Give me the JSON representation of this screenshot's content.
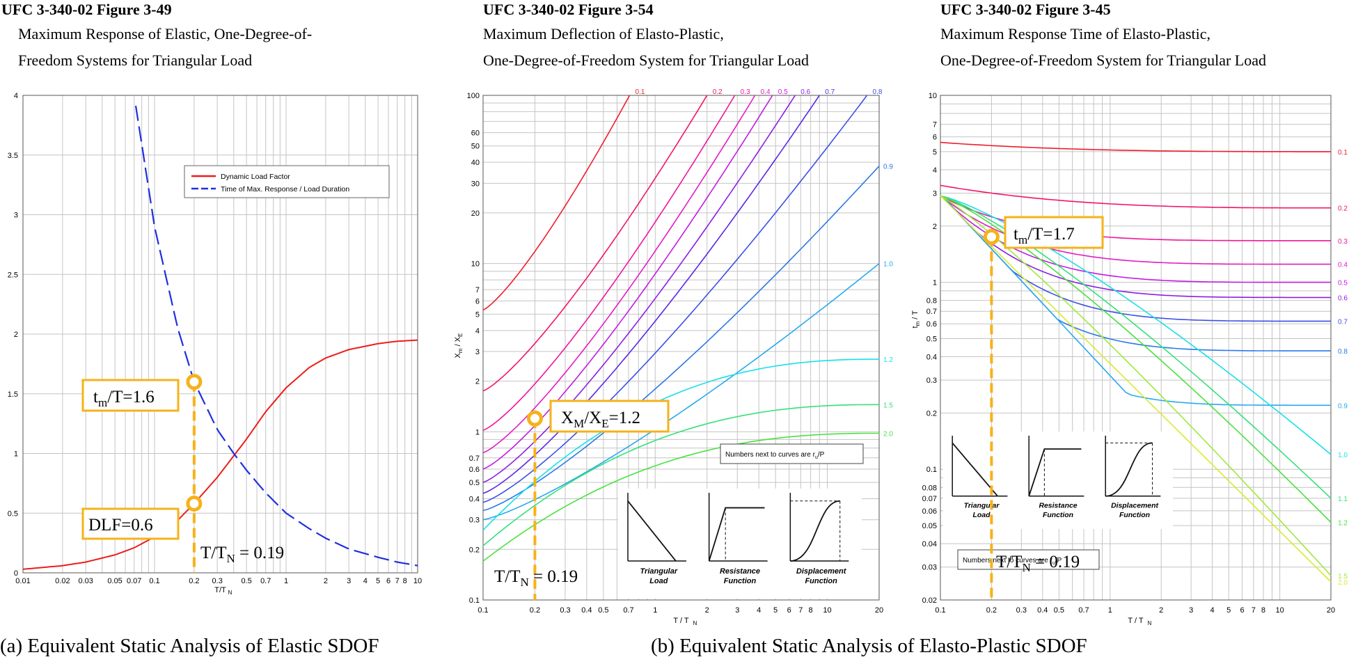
{
  "panels": [
    {
      "figure": "UFC 3-340-02 Figure 3-49",
      "line1": "Maximum Response of Elastic, One-Degree-of-",
      "line2": "Freedom Systems for Triangular Load"
    },
    {
      "figure": "UFC 3-340-02 Figure 3-54",
      "line1": "Maximum Deflection of Elasto-Plastic,",
      "line2": "One-Degree-of-Freedom System for Triangular Load"
    },
    {
      "figure": "UFC 3-340-02 Figure 3-45",
      "line1": "Maximum Response Time of Elasto-Plastic,",
      "line2": "One-Degree-of-Freedom System for Triangular Load"
    }
  ],
  "captions": {
    "a": "(a) Equivalent Static Analysis of Elastic SDOF",
    "b": "(b) Equivalent Static Analysis of Elasto-Plastic SDOF"
  },
  "colors": {
    "red": "#ee1c1c",
    "blue": "#1f2fe0",
    "orange": "#f6b21a",
    "grid": "#c4c4c4"
  },
  "chart_data": [
    {
      "type": "line",
      "xscale": "log",
      "xlim": [
        0.01,
        10
      ],
      "ylim": [
        0,
        4
      ],
      "xlabel": "T/T_N",
      "xticks": [
        "0.01",
        "0.02",
        "0.03",
        "0.05",
        "0.07",
        "0.1",
        "0.2",
        "0.3",
        "0.5",
        "0.7",
        "1",
        "2",
        "3",
        "4",
        "5",
        "6",
        "7",
        "8",
        "10"
      ],
      "yticks": [
        "0",
        "0.5",
        "1",
        "1.5",
        "2",
        "2.5",
        "3",
        "3.5",
        "4"
      ],
      "legend": [
        "Dynamic Load Factor",
        "Time of Max. Response / Load Duration"
      ],
      "series": [
        {
          "name": "Dynamic Load Factor",
          "x": [
            0.01,
            0.02,
            0.03,
            0.05,
            0.07,
            0.1,
            0.15,
            0.2,
            0.3,
            0.4,
            0.5,
            0.7,
            1,
            1.5,
            2,
            3,
            5,
            7,
            10
          ],
          "y": [
            0.03,
            0.06,
            0.09,
            0.15,
            0.21,
            0.3,
            0.44,
            0.58,
            0.8,
            0.98,
            1.12,
            1.35,
            1.55,
            1.72,
            1.8,
            1.87,
            1.92,
            1.94,
            1.95
          ]
        },
        {
          "name": "Time of Max. Response / Load Duration",
          "x": [
            0.07,
            0.1,
            0.15,
            0.2,
            0.3,
            0.4,
            0.5,
            0.7,
            1,
            1.5,
            2,
            3,
            5,
            7,
            10
          ],
          "y": [
            4.0,
            2.9,
            2.05,
            1.6,
            1.2,
            1.0,
            0.86,
            0.67,
            0.5,
            0.37,
            0.29,
            0.2,
            0.13,
            0.09,
            0.06
          ]
        }
      ],
      "annotations": {
        "tm": "1.6",
        "dlf": "0.6",
        "ratio": "0.19",
        "x": 0.2,
        "y_tm": 1.6,
        "y_dlf": 0.58
      }
    },
    {
      "type": "line",
      "xscale": "log",
      "yscale": "log",
      "xlim": [
        0.1,
        20
      ],
      "ylim": [
        0.1,
        100
      ],
      "xlabel": "T / T_N",
      "ylabel": "X_m / X_E",
      "xticks": [
        "0.1",
        "0.2",
        "0.3",
        "0.4",
        "0.5",
        "0.7",
        "1",
        "2",
        "3",
        "4",
        "5",
        "6",
        "7",
        "8",
        "10",
        "20"
      ],
      "yticks": [
        "0.1",
        "0.2",
        "0.3",
        "0.4",
        "0.5",
        "0.6",
        "0.7",
        "1",
        "2",
        "3",
        "4",
        "5",
        "6",
        "7",
        "10",
        "20",
        "30",
        "40",
        "50",
        "60",
        "100"
      ],
      "note": "Numbers next to curves are r",
      "insets": [
        "Triangular Load",
        "Resistance Function",
        "Displacement Function"
      ],
      "series": [
        {
          "name": "0.1",
          "start": 5.3
        },
        {
          "name": "0.2",
          "start": 1.75
        },
        {
          "name": "0.3",
          "start": 1.02
        },
        {
          "name": "0.4",
          "start": 0.75
        },
        {
          "name": "0.5",
          "start": 0.6
        },
        {
          "name": "0.6",
          "start": 0.5
        },
        {
          "name": "0.7",
          "start": 0.43
        },
        {
          "name": "0.8",
          "start": 0.38
        },
        {
          "name": "0.9",
          "start": 0.34
        },
        {
          "name": "1.0",
          "start": 0.3
        },
        {
          "name": "1.2",
          "start": 0.26
        },
        {
          "name": "1.5",
          "start": 0.21
        },
        {
          "name": "2.0",
          "start": 0.17
        }
      ],
      "annotations": {
        "label": "1.2",
        "ratio": "0.19",
        "x": 0.2,
        "y": 1.2
      }
    },
    {
      "type": "line",
      "xscale": "log",
      "yscale": "log",
      "xlim": [
        0.1,
        20
      ],
      "ylim": [
        0.02,
        10
      ],
      "xlabel": "T / T_N",
      "ylabel": "t_m / T",
      "xticks": [
        "0.1",
        "0.2",
        "0.3",
        "0.4",
        "0.5",
        "0.7",
        "1",
        "2",
        "3",
        "4",
        "5",
        "6",
        "7",
        "8",
        "10",
        "20"
      ],
      "yticks": [
        "0.02",
        "0.03",
        "0.04",
        "0.05",
        "0.06",
        "0.07",
        "0.08",
        "0.1",
        "0.2",
        "0.3",
        "0.4",
        "0.5",
        "0.6",
        "0.7",
        "0.8",
        "1",
        "2",
        "3",
        "4",
        "5",
        "6",
        "7",
        "10"
      ],
      "note": "Numbers next to curves are r",
      "insets": [
        "Triangular Load",
        "Resistance Function",
        "Displacement Function"
      ],
      "series": [
        {
          "name": "0.1",
          "end": 5.0
        },
        {
          "name": "0.2",
          "end": 2.5
        },
        {
          "name": "0.3",
          "end": 1.67
        },
        {
          "name": "0.4",
          "end": 1.25
        },
        {
          "name": "0.5",
          "end": 1.0
        },
        {
          "name": "0.6",
          "end": 0.83
        },
        {
          "name": "0.7",
          "end": 0.62
        },
        {
          "name": "0.8",
          "end": 0.43
        },
        {
          "name": "0.9",
          "end": 0.22
        },
        {
          "name": "1.0",
          "end": 0.12
        },
        {
          "name": "1.1",
          "end": 0.07
        },
        {
          "name": "1.2",
          "end": 0.052
        },
        {
          "name": "1.5",
          "end": 0.027
        },
        {
          "name": "2.0",
          "end": 0.025
        }
      ],
      "annotations": {
        "label": "1.7",
        "ratio": "0.19",
        "x": 0.2,
        "y": 1.75
      }
    }
  ]
}
